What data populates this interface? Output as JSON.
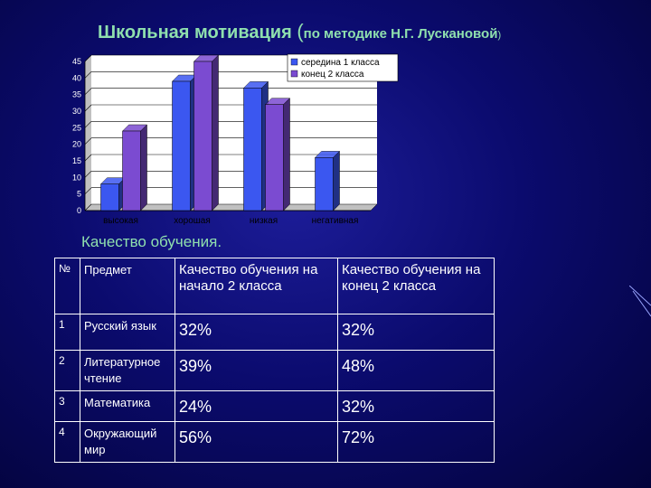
{
  "page": {
    "title_main": "Школьная мотивация ",
    "title_paren_open": "(",
    "title_sub": "по методике Н.Г. Лускановой",
    "title_paren_close": ")",
    "subtitle": "Качество обучения."
  },
  "chart_data": {
    "type": "bar",
    "categories": [
      "высокая",
      "хорошая",
      "низкая",
      "негативная"
    ],
    "series": [
      {
        "name": "середина 1 класса",
        "values": [
          8,
          39,
          37,
          16
        ]
      },
      {
        "name": "конец 2 класса",
        "values": [
          24,
          45,
          32,
          0
        ]
      }
    ],
    "ylim": [
      0,
      45
    ],
    "yticks": [
      0,
      5,
      10,
      15,
      20,
      25,
      30,
      35,
      40,
      45
    ],
    "grid": true,
    "legend": "top-right",
    "colors": {
      "series1": "#3b57f0",
      "series2": "#7b4bd1",
      "chart_bg": "#ffffff"
    }
  },
  "table": {
    "headers": [
      "№",
      "Предмет",
      "Качество обучения на начало 2 класса",
      "Качество обучения на конец 2 класса"
    ],
    "rows": [
      {
        "num": "1",
        "subject": "Русский язык",
        "start": "32%",
        "end": "32%"
      },
      {
        "num": "2",
        "subject": "Литературное чтение",
        "start": "39%",
        "end": "48%"
      },
      {
        "num": "3",
        "subject": "Математика",
        "start": "24%",
        "end": "32%"
      },
      {
        "num": "4",
        "subject": "Окружающий мир",
        "start": "56%",
        "end": "72%"
      }
    ]
  }
}
